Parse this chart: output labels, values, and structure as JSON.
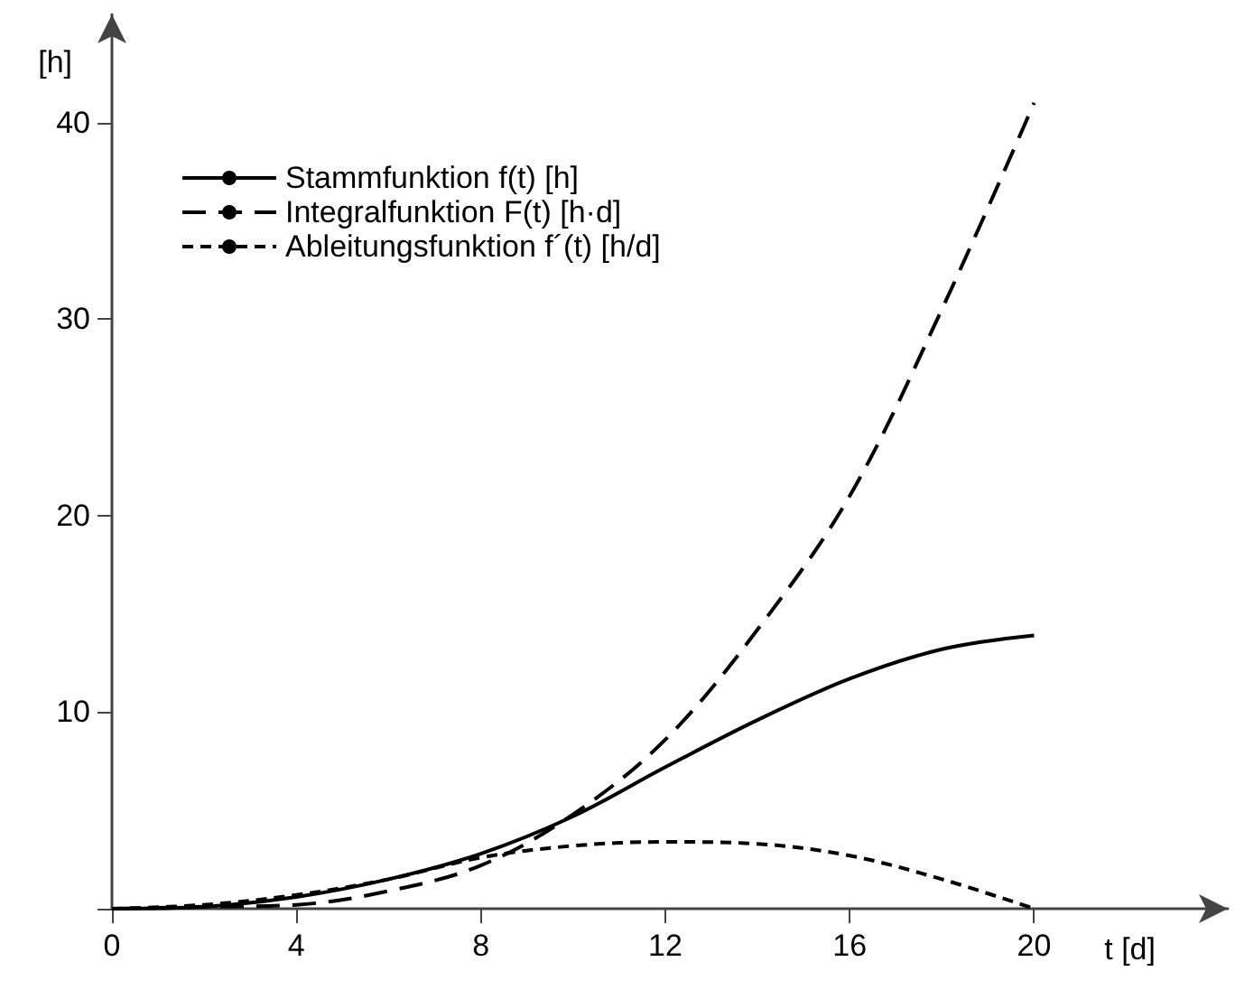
{
  "chart_data": {
    "type": "line",
    "xlabel": "t [d]",
    "ylabel": "[h]",
    "x": [
      0,
      2,
      4,
      6,
      8,
      10,
      12,
      14,
      16,
      18,
      20
    ],
    "series": [
      {
        "name": "Stammfunktion f(t) [h]",
        "color": "#000000",
        "line_style": "solid",
        "values": [
          0,
          0.1,
          0.6,
          1.5,
          2.8,
          4.7,
          7.2,
          9.6,
          11.7,
          13.2,
          13.9
        ]
      },
      {
        "name": "Integralfunktion F(t) [h·d]",
        "color": "#000000",
        "line_style": "dashed",
        "values": [
          0,
          0.1,
          0.2,
          0.9,
          2.2,
          4.8,
          8.6,
          14.2,
          21,
          30.5,
          41
        ]
      },
      {
        "name": "Ableitungsfunktion f´(t) [h/d]",
        "color": "#000000",
        "line_style": "dotted",
        "values": [
          0,
          0.2,
          0.7,
          1.5,
          2.6,
          3.2,
          3.4,
          3.3,
          2.7,
          1.5,
          0
        ]
      }
    ],
    "xlim": [
      0,
      24.2
    ],
    "xticks": [
      0,
      4,
      8,
      12,
      16,
      20
    ],
    "ylim": [
      0,
      45.5
    ],
    "yticks": [
      {
        "value": 0,
        "label": null
      },
      10,
      20,
      30,
      40
    ],
    "grid": false,
    "legend": "top left",
    "marker": "none"
  }
}
